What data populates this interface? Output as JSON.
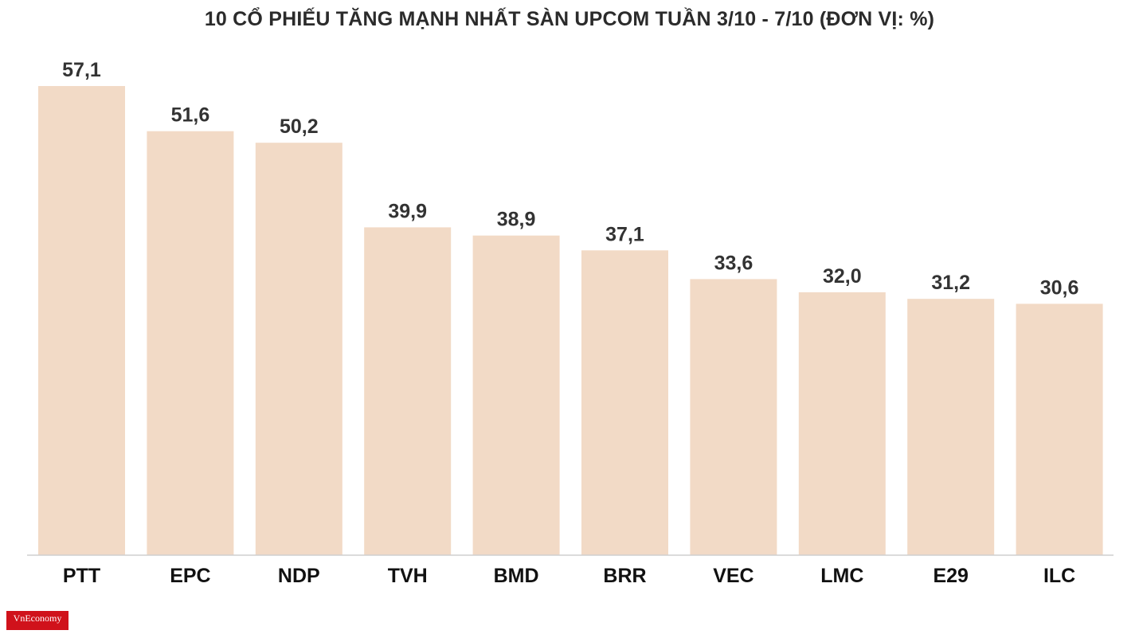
{
  "chart_data": {
    "type": "bar",
    "title": "10 CỔ PHIẾU TĂNG MẠNH NHẤT SÀN UPCOM TUẦN 3/10 - 7/10 (ĐƠN VỊ: %)",
    "categories": [
      "PTT",
      "EPC",
      "NDP",
      "TVH",
      "BMD",
      "BRR",
      "VEC",
      "LMC",
      "E29",
      "ILC"
    ],
    "values": [
      57.1,
      51.6,
      50.2,
      39.9,
      38.9,
      37.1,
      33.6,
      32.0,
      31.2,
      30.6
    ],
    "value_labels": [
      "57,1",
      "51,6",
      "50,2",
      "39,9",
      "38,9",
      "37,1",
      "33,6",
      "32,0",
      "31,2",
      "30,6"
    ],
    "ylim": [
      0,
      57.1
    ],
    "grid": false,
    "legend": "none",
    "colors": {
      "bar": "#f2dac6",
      "axis": "#cfcfcf",
      "text": "#333333"
    }
  },
  "logo": {
    "text": "VnEconomy"
  }
}
